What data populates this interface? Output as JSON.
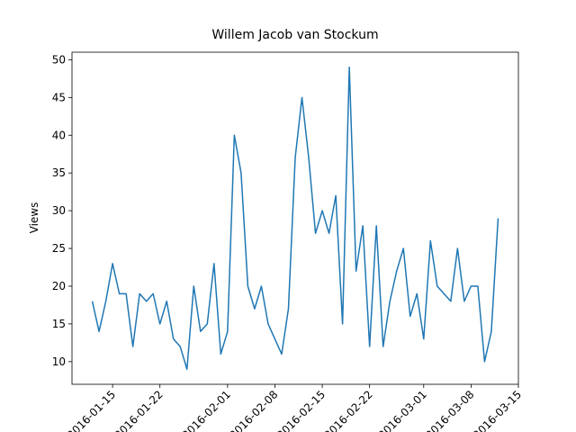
{
  "chart_data": {
    "type": "line",
    "title": "Willem Jacob van Stockum",
    "y_label": "Views",
    "x": [
      "2016-01-12",
      "2016-01-13",
      "2016-01-14",
      "2016-01-15",
      "2016-01-16",
      "2016-01-17",
      "2016-01-18",
      "2016-01-19",
      "2016-01-20",
      "2016-01-21",
      "2016-01-22",
      "2016-01-23",
      "2016-01-24",
      "2016-01-25",
      "2016-01-26",
      "2016-01-27",
      "2016-01-28",
      "2016-01-29",
      "2016-01-30",
      "2016-01-31",
      "2016-02-01",
      "2016-02-02",
      "2016-02-03",
      "2016-02-04",
      "2016-02-05",
      "2016-02-06",
      "2016-02-07",
      "2016-02-08",
      "2016-02-09",
      "2016-02-10",
      "2016-02-11",
      "2016-02-12",
      "2016-02-13",
      "2016-02-14",
      "2016-02-15",
      "2016-02-16",
      "2016-02-17",
      "2016-02-18",
      "2016-02-19",
      "2016-02-20",
      "2016-02-21",
      "2016-02-22",
      "2016-02-23",
      "2016-02-24",
      "2016-02-25",
      "2016-02-26",
      "2016-02-27",
      "2016-02-28",
      "2016-02-29",
      "2016-03-01",
      "2016-03-02",
      "2016-03-03",
      "2016-03-04",
      "2016-03-05",
      "2016-03-06",
      "2016-03-07",
      "2016-03-08",
      "2016-03-09",
      "2016-03-10",
      "2016-03-11",
      "2016-03-12"
    ],
    "series": [
      {
        "name": "Views",
        "color": "#1f77b4",
        "values": [
          18,
          14,
          18,
          23,
          19,
          19,
          12,
          19,
          18,
          19,
          15,
          18,
          13,
          12,
          9,
          20,
          14,
          15,
          23,
          11,
          14,
          40,
          35,
          20,
          17,
          20,
          15,
          13,
          11,
          17,
          37,
          45,
          37,
          27,
          30,
          27,
          32,
          15,
          49,
          22,
          28,
          12,
          28,
          12,
          18,
          22,
          25,
          16,
          19,
          13,
          26,
          20,
          19,
          18,
          25,
          18,
          20,
          20,
          10,
          14,
          29
        ]
      }
    ],
    "xlim": [
      "2016-01-09",
      "2016-03-15"
    ],
    "xticks": [
      "2016-01-15",
      "2016-01-22",
      "2016-02-01",
      "2016-02-08",
      "2016-02-15",
      "2016-02-22",
      "2016-03-01",
      "2016-03-08",
      "2016-03-15"
    ],
    "ylim": [
      7,
      51
    ],
    "yticks": [
      10,
      15,
      20,
      25,
      30,
      35,
      40,
      45,
      50
    ]
  }
}
